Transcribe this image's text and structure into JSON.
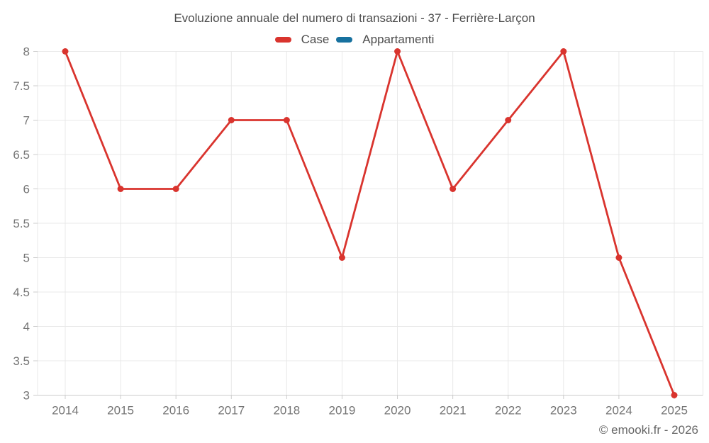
{
  "chart_data": {
    "type": "line",
    "title": "Evoluzione annuale del numero di transazioni - 37 - Ferrière-Larçon",
    "footer": "© emooki.fr - 2026",
    "xlabel": "",
    "ylabel": "",
    "categories": [
      "2014",
      "2015",
      "2016",
      "2017",
      "2018",
      "2019",
      "2020",
      "2021",
      "2022",
      "2023",
      "2024",
      "2025"
    ],
    "series": [
      {
        "name": "Case",
        "color": "#d9342e",
        "values": [
          8,
          6,
          6,
          7,
          7,
          5,
          8,
          6,
          7,
          8,
          5,
          3
        ]
      },
      {
        "name": "Appartamenti",
        "color": "#17719f",
        "values": []
      }
    ],
    "ylim": [
      3,
      8
    ],
    "ytick_step": 0.5,
    "ytick_labels": [
      "3",
      "3.5",
      "4",
      "4.5",
      "5",
      "5.5",
      "6",
      "6.5",
      "7",
      "7.5",
      "8"
    ],
    "grid": true,
    "legend_position": "top",
    "colors": {
      "grid": "#e8e8e8",
      "axis": "#cccccc",
      "tick_label": "#757575",
      "title": "#4d4d4d",
      "footer": "#666666"
    }
  }
}
